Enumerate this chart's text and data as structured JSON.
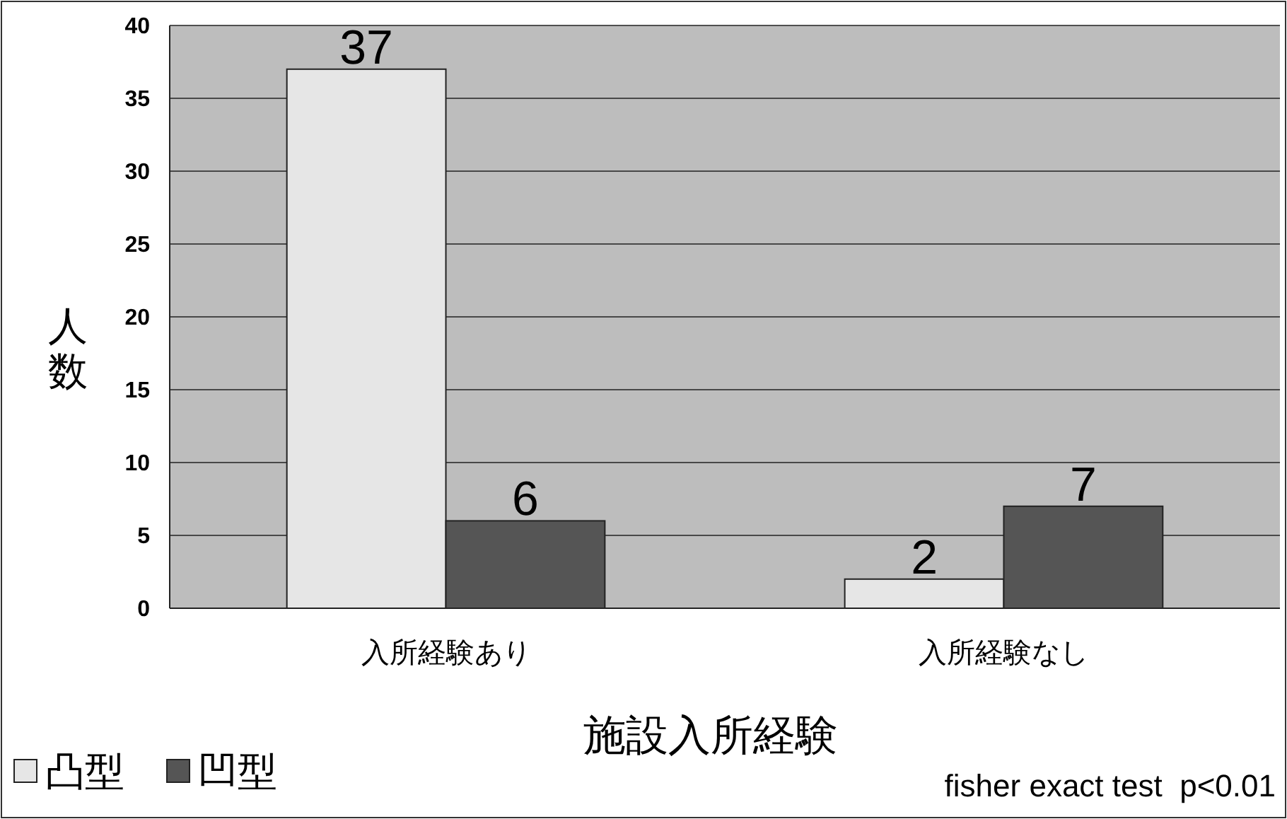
{
  "chart_data": {
    "type": "bar",
    "xlabel": "施設入所経験",
    "ylabel": "人数",
    "categories": [
      "入所経験あり",
      "入所経験なし"
    ],
    "series": [
      {
        "name": "凸型",
        "color": "#e6e6e6",
        "values": [
          37,
          2
        ]
      },
      {
        "name": "凹型",
        "color": "#555555",
        "values": [
          6,
          7
        ]
      }
    ],
    "ylim": [
      0,
      40
    ],
    "yticks": [
      0,
      5,
      10,
      15,
      20,
      25,
      30,
      35,
      40
    ],
    "grid": "y",
    "legend": "bottom left",
    "data_labels": true,
    "annotations": [
      "fisher exact test  p<0.01"
    ]
  }
}
